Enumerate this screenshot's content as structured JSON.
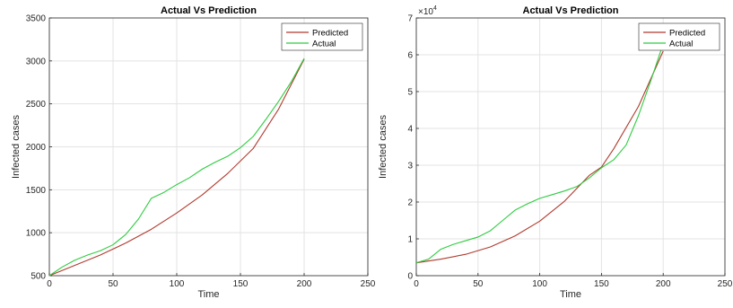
{
  "chart_data": [
    {
      "type": "line",
      "title": "Actual Vs Prediction",
      "xlabel": "Time",
      "ylabel": "Infected cases",
      "xlim": [
        0,
        250
      ],
      "ylim": [
        500,
        3500
      ],
      "xticks": [
        "0",
        "50",
        "100",
        "150",
        "200",
        "250"
      ],
      "yticks": [
        "500",
        "1000",
        "1500",
        "2000",
        "2500",
        "3000",
        "3500"
      ],
      "grid": true,
      "legend": "top-right",
      "series": [
        {
          "name": "Predicted",
          "color": "#b03a2e",
          "x": [
            0,
            20,
            40,
            60,
            80,
            100,
            120,
            140,
            160,
            180,
            200
          ],
          "y": [
            500,
            620,
            740,
            880,
            1040,
            1230,
            1440,
            1690,
            1980,
            2440,
            3020
          ]
        },
        {
          "name": "Actual",
          "color": "#2ecc40",
          "x": [
            0,
            10,
            20,
            30,
            40,
            50,
            60,
            70,
            80,
            90,
            100,
            110,
            120,
            130,
            140,
            150,
            160,
            170,
            180,
            190,
            200
          ],
          "y": [
            500,
            600,
            680,
            740,
            790,
            860,
            980,
            1160,
            1400,
            1470,
            1560,
            1640,
            1740,
            1820,
            1890,
            1990,
            2120,
            2320,
            2530,
            2760,
            3030
          ]
        }
      ]
    },
    {
      "type": "line",
      "title": "Actual Vs Prediction",
      "xlabel": "Time",
      "ylabel": "Infected cases",
      "xlim": [
        0,
        250
      ],
      "ylim": [
        0,
        7
      ],
      "y_exponent": {
        "base": "10",
        "power": "4"
      },
      "xticks": [
        "0",
        "50",
        "100",
        "150",
        "200",
        "250"
      ],
      "yticks": [
        "0",
        "1",
        "2",
        "3",
        "4",
        "5",
        "6",
        "7"
      ],
      "grid": true,
      "legend": "top-right",
      "series": [
        {
          "name": "Predicted",
          "color": "#b03a2e",
          "x": [
            0,
            20,
            40,
            60,
            80,
            100,
            120,
            140,
            150,
            160,
            180,
            200
          ],
          "y": [
            0.35,
            0.45,
            0.58,
            0.78,
            1.08,
            1.48,
            2.02,
            2.72,
            2.95,
            3.45,
            4.6,
            6.1
          ]
        },
        {
          "name": "Actual",
          "color": "#2ecc40",
          "x": [
            0,
            10,
            20,
            30,
            40,
            50,
            60,
            70,
            80,
            90,
            100,
            110,
            120,
            130,
            140,
            150,
            160,
            170,
            180,
            190,
            200
          ],
          "y": [
            0.35,
            0.45,
            0.72,
            0.85,
            0.95,
            1.05,
            1.22,
            1.5,
            1.78,
            1.95,
            2.1,
            2.2,
            2.3,
            2.42,
            2.65,
            2.93,
            3.15,
            3.55,
            4.35,
            5.3,
            6.3
          ]
        }
      ]
    }
  ]
}
